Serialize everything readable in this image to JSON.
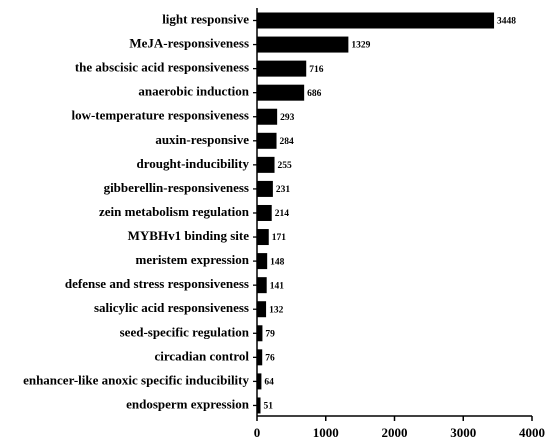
{
  "chart_data": {
    "type": "bar",
    "orientation": "horizontal",
    "color": "#000000",
    "categories": [
      "light responsive",
      "MeJA-responsiveness",
      "the abscisic acid responsiveness",
      "anaerobic induction",
      "low-temperature responsiveness",
      "auxin-responsive",
      "drought-inducibility",
      "gibberellin-responsiveness",
      "zein metabolism regulation",
      "MYBHv1 binding site",
      "meristem expression",
      "defense and stress responsiveness",
      "salicylic acid responsiveness",
      "seed-specific regulation",
      "circadian control",
      "enhancer-like anoxic specific inducibility",
      "endosperm expression"
    ],
    "values": [
      3448,
      1329,
      716,
      686,
      293,
      284,
      255,
      231,
      214,
      171,
      148,
      141,
      132,
      79,
      76,
      64,
      51
    ],
    "xlim": [
      0,
      4000
    ],
    "xticks": [
      0,
      1000,
      2000,
      3000,
      4000
    ]
  }
}
